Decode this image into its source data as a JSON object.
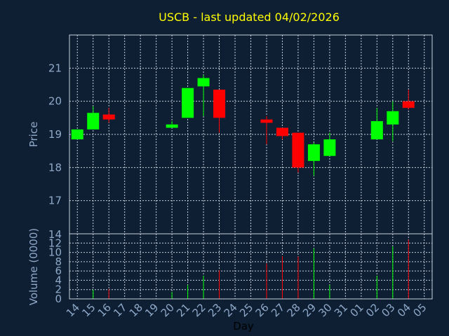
{
  "chart_data": {
    "type": "candlestick",
    "title": "USCB - last updated 04/02/2026",
    "xlabel": "Day",
    "price_panel": {
      "ylabel": "Price",
      "ylim": [
        16.0,
        22.0
      ],
      "yticks": [
        17,
        18,
        19,
        20,
        21
      ]
    },
    "volume_panel": {
      "ylabel": "Volume (0000)",
      "ylim": [
        0,
        14
      ],
      "yticks": [
        0,
        2,
        4,
        6,
        8,
        10,
        12
      ],
      "top_tick_label": "14"
    },
    "days": [
      "14",
      "15",
      "16",
      "17",
      "18",
      "19",
      "20",
      "21",
      "22",
      "23",
      "24",
      "25",
      "26",
      "27",
      "28",
      "29",
      "30",
      "31",
      "01",
      "02",
      "03",
      "04",
      "05"
    ],
    "candles": [
      {
        "day": "14",
        "open": 18.85,
        "high": 19.15,
        "low": 18.85,
        "close": 19.15,
        "volume": 0.0
      },
      {
        "day": "15",
        "open": 19.15,
        "high": 19.85,
        "low": 19.15,
        "close": 19.65,
        "volume": 2.0
      },
      {
        "day": "16",
        "open": 19.6,
        "high": 19.8,
        "low": 19.35,
        "close": 19.45,
        "volume": 2.1
      },
      {
        "day": "20",
        "open": 19.2,
        "high": 19.4,
        "low": 19.2,
        "close": 19.3,
        "volume": 1.5
      },
      {
        "day": "21",
        "open": 19.5,
        "high": 20.4,
        "low": 19.5,
        "close": 20.4,
        "volume": 3.0
      },
      {
        "day": "22",
        "open": 20.45,
        "high": 20.8,
        "low": 19.55,
        "close": 20.7,
        "volume": 5.0
      },
      {
        "day": "23",
        "open": 20.35,
        "high": 20.35,
        "low": 19.05,
        "close": 19.5,
        "volume": 6.2
      },
      {
        "day": "26",
        "open": 19.45,
        "high": 19.55,
        "low": 18.7,
        "close": 19.35,
        "volume": 7.6
      },
      {
        "day": "27",
        "open": 19.2,
        "high": 19.2,
        "low": 18.85,
        "close": 18.95,
        "volume": 9.2
      },
      {
        "day": "28",
        "open": 19.05,
        "high": 19.05,
        "low": 17.85,
        "close": 18.0,
        "volume": 9.1
      },
      {
        "day": "29",
        "open": 18.2,
        "high": 18.75,
        "low": 17.75,
        "close": 18.7,
        "volume": 10.9
      },
      {
        "day": "30",
        "open": 18.35,
        "high": 19.05,
        "low": 18.35,
        "close": 18.85,
        "volume": 3.0
      },
      {
        "day": "02",
        "open": 18.85,
        "high": 19.8,
        "low": 18.85,
        "close": 19.4,
        "volume": 5.0
      },
      {
        "day": "03",
        "open": 19.3,
        "high": 20.0,
        "low": 18.8,
        "close": 19.7,
        "volume": 11.3
      },
      {
        "day": "04",
        "open": 20.0,
        "high": 20.35,
        "low": 19.75,
        "close": 19.8,
        "volume": 12.7
      }
    ],
    "up_color": "#00ff00",
    "down_color": "#ff0000",
    "background": "#0e1f33",
    "grid": true
  }
}
